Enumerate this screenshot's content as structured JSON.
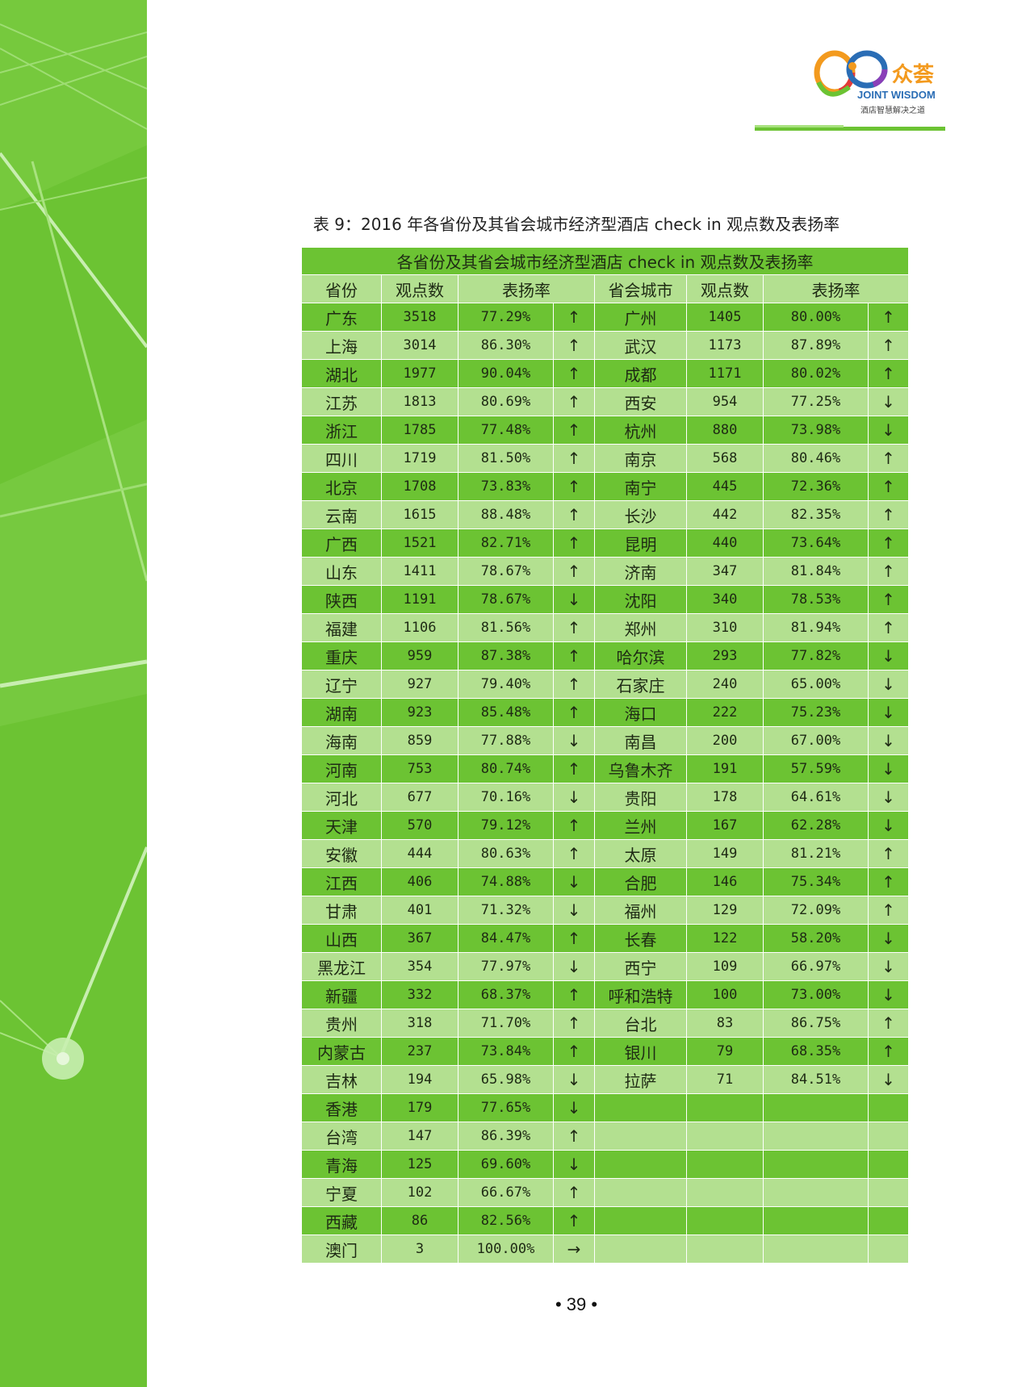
{
  "logo": {
    "brand": "众荟",
    "name": "JOINT WISDOM",
    "tagline": "酒店智慧解决之道"
  },
  "caption": "表 9：2016 年各省份及其省会城市经济型酒店 check in 观点数及表扬率",
  "table": {
    "title": "各省份及其省会城市经济型酒店 check  in 观点数及表扬率",
    "headers": [
      "省份",
      "观点数",
      "表扬率",
      "省会城市",
      "观点数",
      "表扬率"
    ],
    "rows": [
      [
        "广东",
        "3518",
        "77.29%",
        "↑",
        "广州",
        "1405",
        "80.00%",
        "↑"
      ],
      [
        "上海",
        "3014",
        "86.30%",
        "↑",
        "武汉",
        "1173",
        "87.89%",
        "↑"
      ],
      [
        "湖北",
        "1977",
        "90.04%",
        "↑",
        "成都",
        "1171",
        "80.02%",
        "↑"
      ],
      [
        "江苏",
        "1813",
        "80.69%",
        "↑",
        "西安",
        "954",
        "77.25%",
        "↓"
      ],
      [
        "浙江",
        "1785",
        "77.48%",
        "↑",
        "杭州",
        "880",
        "73.98%",
        "↓"
      ],
      [
        "四川",
        "1719",
        "81.50%",
        "↑",
        "南京",
        "568",
        "80.46%",
        "↑"
      ],
      [
        "北京",
        "1708",
        "73.83%",
        "↑",
        "南宁",
        "445",
        "72.36%",
        "↑"
      ],
      [
        "云南",
        "1615",
        "88.48%",
        "↑",
        "长沙",
        "442",
        "82.35%",
        "↑"
      ],
      [
        "广西",
        "1521",
        "82.71%",
        "↑",
        "昆明",
        "440",
        "73.64%",
        "↑"
      ],
      [
        "山东",
        "1411",
        "78.67%",
        "↑",
        "济南",
        "347",
        "81.84%",
        "↑"
      ],
      [
        "陕西",
        "1191",
        "78.67%",
        "↓",
        "沈阳",
        "340",
        "78.53%",
        "↑"
      ],
      [
        "福建",
        "1106",
        "81.56%",
        "↑",
        "郑州",
        "310",
        "81.94%",
        "↑"
      ],
      [
        "重庆",
        "959",
        "87.38%",
        "↑",
        "哈尔滨",
        "293",
        "77.82%",
        "↓"
      ],
      [
        "辽宁",
        "927",
        "79.40%",
        "↑",
        "石家庄",
        "240",
        "65.00%",
        "↓"
      ],
      [
        "湖南",
        "923",
        "85.48%",
        "↑",
        "海口",
        "222",
        "75.23%",
        "↓"
      ],
      [
        "海南",
        "859",
        "77.88%",
        "↓",
        "南昌",
        "200",
        "67.00%",
        "↓"
      ],
      [
        "河南",
        "753",
        "80.74%",
        "↑",
        "乌鲁木齐",
        "191",
        "57.59%",
        "↓"
      ],
      [
        "河北",
        "677",
        "70.16%",
        "↓",
        "贵阳",
        "178",
        "64.61%",
        "↓"
      ],
      [
        "天津",
        "570",
        "79.12%",
        "↑",
        "兰州",
        "167",
        "62.28%",
        "↓"
      ],
      [
        "安徽",
        "444",
        "80.63%",
        "↑",
        "太原",
        "149",
        "81.21%",
        "↑"
      ],
      [
        "江西",
        "406",
        "74.88%",
        "↓",
        "合肥",
        "146",
        "75.34%",
        "↑"
      ],
      [
        "甘肃",
        "401",
        "71.32%",
        "↓",
        "福州",
        "129",
        "72.09%",
        "↑"
      ],
      [
        "山西",
        "367",
        "84.47%",
        "↑",
        "长春",
        "122",
        "58.20%",
        "↓"
      ],
      [
        "黑龙江",
        "354",
        "77.97%",
        "↓",
        "西宁",
        "109",
        "66.97%",
        "↓"
      ],
      [
        "新疆",
        "332",
        "68.37%",
        "↑",
        "呼和浩特",
        "100",
        "73.00%",
        "↓"
      ],
      [
        "贵州",
        "318",
        "71.70%",
        "↑",
        "台北",
        "83",
        "86.75%",
        "↑"
      ],
      [
        "内蒙古",
        "237",
        "73.84%",
        "↑",
        "银川",
        "79",
        "68.35%",
        "↑"
      ],
      [
        "吉林",
        "194",
        "65.98%",
        "↓",
        "拉萨",
        "71",
        "84.51%",
        "↓"
      ],
      [
        "香港",
        "179",
        "77.65%",
        "↓",
        "",
        "",
        "",
        ""
      ],
      [
        "台湾",
        "147",
        "86.39%",
        "↑",
        "",
        "",
        "",
        ""
      ],
      [
        "青海",
        "125",
        "69.60%",
        "↓",
        "",
        "",
        "",
        ""
      ],
      [
        "宁夏",
        "102",
        "66.67%",
        "↑",
        "",
        "",
        "",
        ""
      ],
      [
        "西藏",
        "86",
        "82.56%",
        "↑",
        "",
        "",
        "",
        ""
      ],
      [
        "澳门",
        "3",
        "100.00%",
        "→",
        "",
        "",
        "",
        ""
      ]
    ]
  },
  "page_number": "• 39 •",
  "colors": {
    "green_dark": "#6cc333",
    "green_light": "#b3e090",
    "sidebar": "#6cc333",
    "logo_orange": "#f39a1e"
  }
}
